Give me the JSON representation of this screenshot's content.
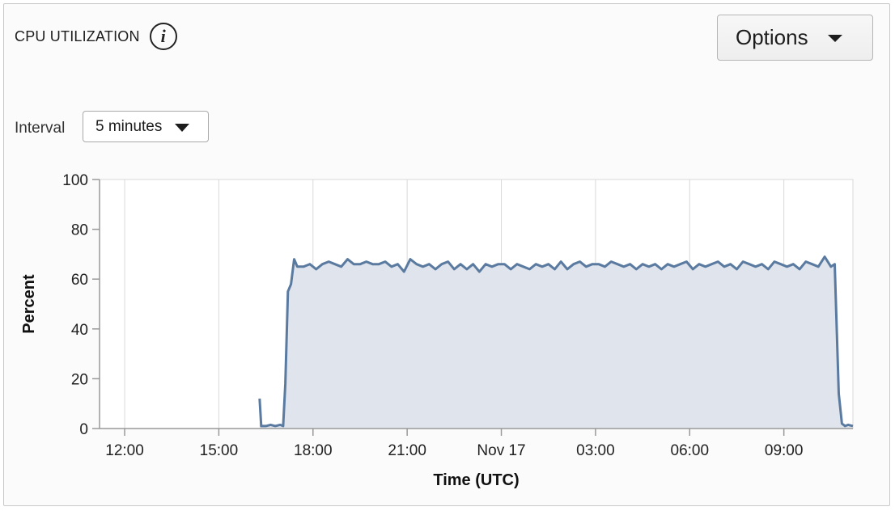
{
  "panel": {
    "title": "CPU UTILIZATION",
    "info_icon": "info-icon"
  },
  "options_button": {
    "label": "Options",
    "icon": "caret-down-icon"
  },
  "interval": {
    "label": "Interval",
    "selected": "5 minutes",
    "icon": "caret-down-icon"
  },
  "colors": {
    "line": "#5a7aa0",
    "fill": "#dfe4ed",
    "grid": "#d9d9d9",
    "axis": "#999999"
  },
  "chart_data": {
    "type": "area",
    "title": "",
    "xlabel": "Time (UTC)",
    "ylabel": "Percent",
    "ylim": [
      0,
      100
    ],
    "yticks": [
      0,
      20,
      40,
      60,
      80,
      100
    ],
    "xlim_hours": [
      11.2,
      35.2
    ],
    "xticks": [
      {
        "hour": 12,
        "label": "12:00"
      },
      {
        "hour": 15,
        "label": "15:00"
      },
      {
        "hour": 18,
        "label": "18:00"
      },
      {
        "hour": 21,
        "label": "21:00"
      },
      {
        "hour": 24,
        "label": "Nov 17"
      },
      {
        "hour": 27,
        "label": "03:00"
      },
      {
        "hour": 30,
        "label": "06:00"
      },
      {
        "hour": 33,
        "label": "09:00"
      }
    ],
    "grid": "vertical",
    "series": [
      {
        "values": [
          [
            16.3,
            12
          ],
          [
            16.35,
            1
          ],
          [
            16.5,
            1
          ],
          [
            16.65,
            1.5
          ],
          [
            16.8,
            1
          ],
          [
            16.95,
            1.5
          ],
          [
            17.05,
            1
          ],
          [
            17.12,
            18
          ],
          [
            17.2,
            55
          ],
          [
            17.3,
            58
          ],
          [
            17.4,
            68
          ],
          [
            17.5,
            65
          ],
          [
            17.7,
            65
          ],
          [
            17.9,
            66
          ],
          [
            18.1,
            64
          ],
          [
            18.3,
            66
          ],
          [
            18.5,
            67
          ],
          [
            18.7,
            66
          ],
          [
            18.9,
            65
          ],
          [
            19.1,
            68
          ],
          [
            19.3,
            66
          ],
          [
            19.5,
            66
          ],
          [
            19.7,
            67
          ],
          [
            19.9,
            66
          ],
          [
            20.1,
            66
          ],
          [
            20.3,
            67
          ],
          [
            20.5,
            65
          ],
          [
            20.7,
            66
          ],
          [
            20.9,
            63
          ],
          [
            21.1,
            68
          ],
          [
            21.3,
            66
          ],
          [
            21.5,
            65
          ],
          [
            21.7,
            66
          ],
          [
            21.9,
            64
          ],
          [
            22.1,
            66
          ],
          [
            22.3,
            67
          ],
          [
            22.5,
            64
          ],
          [
            22.7,
            66
          ],
          [
            22.9,
            64
          ],
          [
            23.1,
            66
          ],
          [
            23.3,
            63
          ],
          [
            23.5,
            66
          ],
          [
            23.7,
            65
          ],
          [
            23.9,
            66
          ],
          [
            24.1,
            66
          ],
          [
            24.3,
            64
          ],
          [
            24.5,
            66
          ],
          [
            24.7,
            65
          ],
          [
            24.9,
            64
          ],
          [
            25.1,
            66
          ],
          [
            25.3,
            65
          ],
          [
            25.5,
            66
          ],
          [
            25.7,
            64
          ],
          [
            25.9,
            67
          ],
          [
            26.1,
            64
          ],
          [
            26.3,
            66
          ],
          [
            26.5,
            67
          ],
          [
            26.7,
            65
          ],
          [
            26.9,
            66
          ],
          [
            27.1,
            66
          ],
          [
            27.3,
            65
          ],
          [
            27.5,
            67
          ],
          [
            27.7,
            66
          ],
          [
            27.9,
            65
          ],
          [
            28.1,
            66
          ],
          [
            28.3,
            64
          ],
          [
            28.5,
            66
          ],
          [
            28.7,
            65
          ],
          [
            28.9,
            66
          ],
          [
            29.1,
            64
          ],
          [
            29.3,
            66
          ],
          [
            29.5,
            65
          ],
          [
            29.7,
            66
          ],
          [
            29.9,
            67
          ],
          [
            30.1,
            64
          ],
          [
            30.3,
            66
          ],
          [
            30.5,
            65
          ],
          [
            30.7,
            66
          ],
          [
            30.9,
            67
          ],
          [
            31.1,
            65
          ],
          [
            31.3,
            66
          ],
          [
            31.5,
            64
          ],
          [
            31.7,
            67
          ],
          [
            31.9,
            66
          ],
          [
            32.1,
            65
          ],
          [
            32.3,
            66
          ],
          [
            32.5,
            64
          ],
          [
            32.7,
            67
          ],
          [
            32.9,
            66
          ],
          [
            33.1,
            65
          ],
          [
            33.3,
            66
          ],
          [
            33.5,
            64
          ],
          [
            33.7,
            67
          ],
          [
            33.9,
            66
          ],
          [
            34.1,
            65
          ],
          [
            34.3,
            69
          ],
          [
            34.5,
            65
          ],
          [
            34.62,
            66
          ],
          [
            34.75,
            14
          ],
          [
            34.85,
            2
          ],
          [
            34.95,
            1
          ],
          [
            35.05,
            1.5
          ],
          [
            35.2,
            1
          ]
        ]
      }
    ]
  }
}
